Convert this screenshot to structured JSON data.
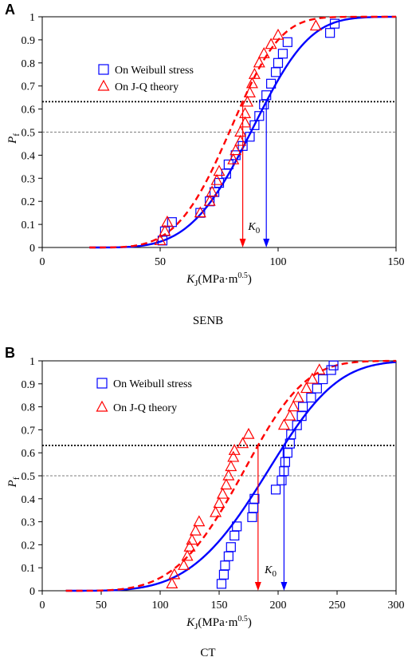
{
  "chart_data": [
    {
      "panel": "A",
      "type": "scatter",
      "caption": "SENB",
      "xlim": [
        0,
        150
      ],
      "ylim": [
        0,
        1
      ],
      "xticks": [
        "0",
        "50",
        "100",
        "150"
      ],
      "yticks": [
        "0",
        "0.1",
        "0.2",
        "0.3",
        "0.4",
        "0.5",
        "0.6",
        "0.7",
        "0.8",
        "0.9",
        "1"
      ],
      "xlabel": {
        "var": "K",
        "sub": "J",
        "unit": "(MPa·m",
        "sup": "0.5",
        "close": ")"
      },
      "ylabel": {
        "var": "P",
        "sub": "f"
      },
      "legend_position": "top-left",
      "hlines": [
        0.632,
        0.5
      ],
      "k0_label": {
        "var": "K",
        "sub": "0"
      },
      "series": [
        {
          "name": "On Weibull stress",
          "color": "#0000ff",
          "marker": "square",
          "curve": "solid",
          "weibull": {
            "K0": 95,
            "Kmin": 20,
            "m": 4
          },
          "k0_value": 95,
          "points": [
            [
              51,
              0.03
            ],
            [
              52,
              0.07
            ],
            [
              55,
              0.11
            ],
            [
              67,
              0.15
            ],
            [
              71,
              0.2
            ],
            [
              73,
              0.24
            ],
            [
              75,
              0.28
            ],
            [
              78,
              0.32
            ],
            [
              79,
              0.36
            ],
            [
              82,
              0.4
            ],
            [
              85,
              0.44
            ],
            [
              88,
              0.48
            ],
            [
              90,
              0.53
            ],
            [
              92,
              0.57
            ],
            [
              94,
              0.62
            ],
            [
              95,
              0.66
            ],
            [
              97,
              0.71
            ],
            [
              99,
              0.76
            ],
            [
              100,
              0.8
            ],
            [
              102,
              0.84
            ],
            [
              104,
              0.89
            ],
            [
              122,
              0.93
            ],
            [
              124,
              0.97
            ]
          ]
        },
        {
          "name": "On J-Q theory",
          "color": "#ff0000",
          "marker": "triangle",
          "curve": "dashed",
          "weibull": {
            "K0": 85,
            "Kmin": 20,
            "m": 4
          },
          "k0_value": 85,
          "points": [
            [
              50,
              0.03
            ],
            [
              52,
              0.07
            ],
            [
              53,
              0.11
            ],
            [
              67,
              0.15
            ],
            [
              71,
              0.2
            ],
            [
              72,
              0.24
            ],
            [
              74,
              0.29
            ],
            [
              75,
              0.33
            ],
            [
              81,
              0.38
            ],
            [
              82,
              0.42
            ],
            [
              84,
              0.46
            ],
            [
              84,
              0.5
            ],
            [
              86,
              0.54
            ],
            [
              86,
              0.58
            ],
            [
              87,
              0.63
            ],
            [
              88,
              0.67
            ],
            [
              89,
              0.71
            ],
            [
              90,
              0.75
            ],
            [
              92,
              0.8
            ],
            [
              94,
              0.84
            ],
            [
              97,
              0.88
            ],
            [
              100,
              0.92
            ],
            [
              116,
              0.96
            ]
          ]
        }
      ]
    },
    {
      "panel": "B",
      "type": "scatter",
      "caption": "CT",
      "xlim": [
        0,
        300
      ],
      "ylim": [
        0,
        1
      ],
      "xticks": [
        "0",
        "50",
        "100",
        "150",
        "200",
        "250",
        "300"
      ],
      "yticks": [
        "0",
        "0.1",
        "0.2",
        "0.3",
        "0.4",
        "0.5",
        "0.6",
        "0.7",
        "0.8",
        "0.9",
        "1"
      ],
      "xlabel": {
        "var": "K",
        "sub": "J",
        "unit": "(MPa·m",
        "sup": "0.5",
        "close": ")"
      },
      "ylabel": {
        "var": "P",
        "sub": "f"
      },
      "legend_position": "top-left",
      "hlines": [
        0.632,
        0.5
      ],
      "k0_label": {
        "var": "K",
        "sub": "0"
      },
      "series": [
        {
          "name": "On Weibull stress",
          "color": "#0000ff",
          "marker": "square",
          "curve": "solid",
          "weibull": {
            "K0": 205,
            "Kmin": 20,
            "m": 4
          },
          "k0_value": 205,
          "points": [
            [
              152,
              0.03
            ],
            [
              154,
              0.07
            ],
            [
              155,
              0.11
            ],
            [
              158,
              0.15
            ],
            [
              160,
              0.19
            ],
            [
              163,
              0.24
            ],
            [
              165,
              0.28
            ],
            [
              178,
              0.32
            ],
            [
              179,
              0.36
            ],
            [
              180,
              0.4
            ],
            [
              198,
              0.44
            ],
            [
              203,
              0.48
            ],
            [
              205,
              0.52
            ],
            [
              206,
              0.56
            ],
            [
              208,
              0.6
            ],
            [
              210,
              0.64
            ],
            [
              211,
              0.68
            ],
            [
              216,
              0.72
            ],
            [
              220,
              0.76
            ],
            [
              221,
              0.8
            ],
            [
              228,
              0.84
            ],
            [
              233,
              0.88
            ],
            [
              238,
              0.92
            ],
            [
              245,
              0.96
            ],
            [
              247,
              0.98
            ]
          ]
        },
        {
          "name": "On J-Q theory",
          "color": "#ff0000",
          "marker": "triangle",
          "curve": "dashed",
          "weibull": {
            "K0": 183,
            "Kmin": 20,
            "m": 4
          },
          "k0_value": 183,
          "points": [
            [
              110,
              0.03
            ],
            [
              112,
              0.07
            ],
            [
              120,
              0.11
            ],
            [
              123,
              0.15
            ],
            [
              125,
              0.19
            ],
            [
              127,
              0.22
            ],
            [
              130,
              0.26
            ],
            [
              133,
              0.3
            ],
            [
              147,
              0.34
            ],
            [
              150,
              0.38
            ],
            [
              153,
              0.42
            ],
            [
              156,
              0.46
            ],
            [
              158,
              0.5
            ],
            [
              160,
              0.54
            ],
            [
              162,
              0.58
            ],
            [
              163,
              0.61
            ],
            [
              170,
              0.64
            ],
            [
              175,
              0.68
            ],
            [
              205,
              0.72
            ],
            [
              210,
              0.76
            ],
            [
              213,
              0.8
            ],
            [
              217,
              0.84
            ],
            [
              224,
              0.88
            ],
            [
              229,
              0.92
            ],
            [
              235,
              0.96
            ]
          ]
        }
      ]
    }
  ]
}
